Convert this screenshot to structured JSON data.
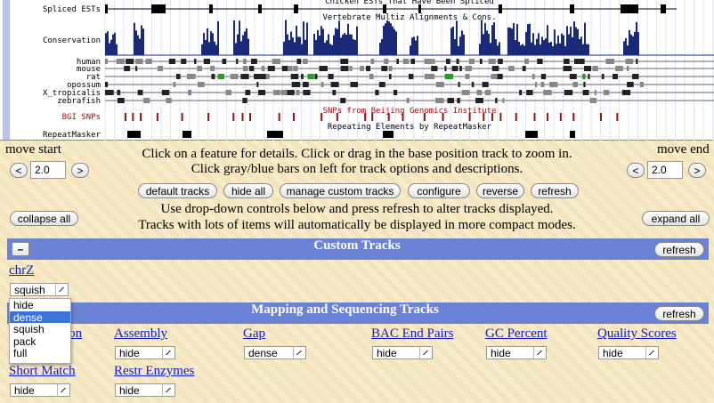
{
  "browser_image": {
    "titles": [
      "Chicken ESTs That Have Been Spliced",
      "Vertebrate Multiz Alignments & Cons.",
      "SNPs from Beijing Genomics Institute",
      "Repeating Elements by RepeatMasker"
    ],
    "labels": [
      "Spliced ESTs",
      "Conservation",
      "human",
      "mouse",
      "rat",
      "opossum",
      "X_tropicalis",
      "zebrafish",
      "BGI SNPs",
      "RepeatMasker"
    ]
  },
  "navigation": {
    "move_start": {
      "label": "move start",
      "left": "<",
      "value": "2.0",
      "right": ">"
    },
    "move_end": {
      "label": "move end",
      "left": "<",
      "value": "2.0",
      "right": ">"
    },
    "instructions": [
      "Click on a feature for details. Click or drag in the base position track to zoom in.",
      "Click gray/blue bars on left for track options and descriptions."
    ],
    "buttons": [
      "default tracks",
      "hide all",
      "manage custom tracks",
      "configure",
      "reverse",
      "refresh"
    ],
    "collapse_all": "collapse all",
    "expand_all": "expand all",
    "notes": [
      "Use drop-down controls below and press refresh to alter tracks displayed.",
      "Tracks with lots of items will automatically be displayed in more compact modes."
    ]
  },
  "custom_tracks": {
    "collapse": "–",
    "title": "Custom Tracks",
    "refresh": "refresh",
    "track": {
      "name": "chrZ",
      "mode": "squish",
      "options": [
        "hide",
        "dense",
        "squish",
        "pack",
        "full"
      ],
      "highlighted": "dense"
    }
  },
  "mapping_tracks": {
    "title": "Mapping and Sequencing Tracks",
    "refresh": "refresh",
    "tracks": [
      {
        "name": "Base Position",
        "mode": null
      },
      {
        "name": "Assembly",
        "mode": "hide"
      },
      {
        "name": "Gap",
        "mode": "dense"
      },
      {
        "name": "BAC End Pairs",
        "mode": "hide"
      },
      {
        "name": "GC Percent",
        "mode": "hide"
      },
      {
        "name": "Quality Scores",
        "mode": "hide"
      },
      {
        "name": "Short Match",
        "mode": "hide"
      },
      {
        "name": "Restr Enzymes",
        "mode": "hide"
      }
    ]
  }
}
